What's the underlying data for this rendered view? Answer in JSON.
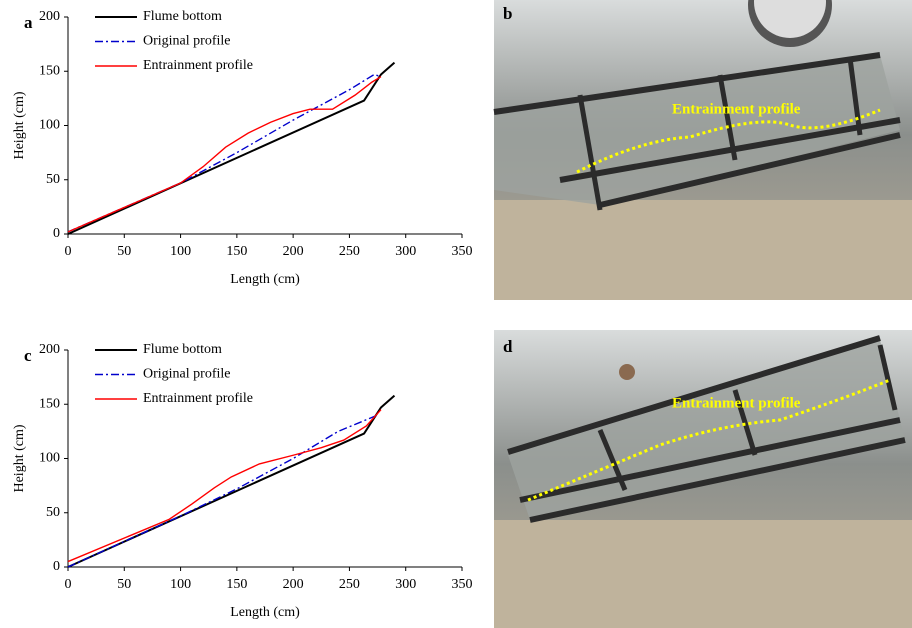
{
  "chart_data": [
    {
      "type": "line",
      "panel_label": "a",
      "xlabel": "Length (cm)",
      "ylabel": "Height (cm)",
      "xlim": [
        0,
        350
      ],
      "xticks": [
        0,
        50,
        100,
        150,
        200,
        250,
        300,
        350
      ],
      "ylim": [
        0,
        200
      ],
      "yticks": [
        0,
        50,
        100,
        150,
        200
      ],
      "grid": false,
      "legend": "upper left",
      "series": [
        {
          "name": "Flume bottom",
          "color": "#000000",
          "line_style": "solid",
          "x": [
            0,
            263,
            278,
            290
          ],
          "values": [
            0,
            123,
            147,
            158
          ]
        },
        {
          "name": "Original profile",
          "color": "#0000cc",
          "line_style": "dash-dot",
          "x": [
            0,
            100,
            150,
            200,
            250,
            272,
            278
          ],
          "values": [
            2,
            47,
            75,
            105,
            133,
            147,
            145
          ]
        },
        {
          "name": "Entrainment profile",
          "color": "#ff0000",
          "line_style": "solid",
          "x": [
            0,
            100,
            120,
            140,
            160,
            180,
            200,
            215,
            235,
            255,
            270,
            278
          ],
          "values": [
            2,
            47,
            62,
            80,
            93,
            103,
            111,
            115,
            115,
            128,
            140,
            145
          ]
        }
      ]
    },
    {
      "type": "line",
      "panel_label": "c",
      "xlabel": "Length (cm)",
      "ylabel": "Height (cm)",
      "xlim": [
        0,
        350
      ],
      "xticks": [
        0,
        50,
        100,
        150,
        200,
        250,
        300,
        350
      ],
      "ylim": [
        0,
        200
      ],
      "yticks": [
        0,
        50,
        100,
        150,
        200
      ],
      "grid": false,
      "legend": "upper left",
      "series": [
        {
          "name": "Flume bottom",
          "color": "#000000",
          "line_style": "solid",
          "x": [
            0,
            263,
            278,
            290
          ],
          "values": [
            0,
            123,
            147,
            158
          ]
        },
        {
          "name": "Original profile",
          "color": "#0000cc",
          "line_style": "dash-dot",
          "x": [
            0,
            100,
            150,
            200,
            240,
            275
          ],
          "values": [
            0,
            47,
            72,
            100,
            125,
            140
          ]
        },
        {
          "name": "Entrainment profile",
          "color": "#ff0000",
          "line_style": "solid",
          "x": [
            0,
            90,
            110,
            130,
            145,
            170,
            200,
            225,
            245,
            265,
            278
          ],
          "values": [
            5,
            44,
            58,
            73,
            83,
            95,
            103,
            110,
            117,
            130,
            145
          ]
        }
      ]
    }
  ],
  "photos": [
    {
      "panel_label": "b",
      "annotation": "Entrainment profile"
    },
    {
      "panel_label": "d",
      "annotation": "Entrainment profile"
    }
  ]
}
